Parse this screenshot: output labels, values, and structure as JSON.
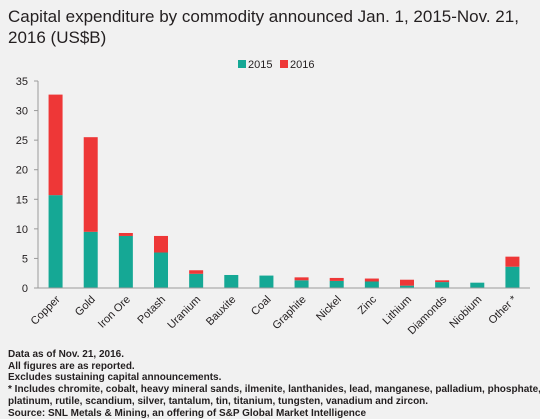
{
  "chart_data": {
    "type": "bar",
    "stacked": true,
    "title": "Capital expenditure by commodity announced Jan. 1, 2015-Nov. 21, 2016 (US$B)",
    "categories": [
      "Copper",
      "Gold",
      "Iron Ore",
      "Potash",
      "Uranium",
      "Bauxite",
      "Coal",
      "Graphite",
      "Nickel",
      "Zinc",
      "Lithium",
      "Diamonds",
      "Niobium",
      "Other *"
    ],
    "series": [
      {
        "name": "2015",
        "color": "#15a895",
        "values": [
          15.7,
          9.5,
          8.8,
          6.0,
          2.4,
          2.2,
          2.1,
          1.3,
          1.2,
          1.1,
          0.4,
          1.0,
          0.9,
          3.6
        ]
      },
      {
        "name": "2016",
        "color": "#ee3737",
        "values": [
          17.0,
          16.0,
          0.5,
          2.8,
          0.6,
          0.0,
          0.0,
          0.5,
          0.5,
          0.5,
          1.0,
          0.3,
          0.0,
          1.7
        ]
      }
    ],
    "ylim": [
      0,
      35
    ],
    "yticks": [
      0,
      5,
      10,
      15,
      20,
      25,
      30,
      35
    ],
    "xlabel": "",
    "ylabel": "",
    "legend_position": "top-center",
    "grid": false
  },
  "notes": [
    "Data as of Nov. 21, 2016.",
    "All figures are as reported.",
    "Excludes sustaining capital announcements.",
    "* Includes chromite, cobalt, heavy mineral sands, ilmenite, lanthanides, lead, manganese, palladium, phosphate,",
    "platinum, rutile, scandium, silver, tantalum, tin, titanium, tungsten, vanadium and zircon.",
    "Source: SNL Metals & Mining, an offering of S&P Global Market Intelligence"
  ]
}
